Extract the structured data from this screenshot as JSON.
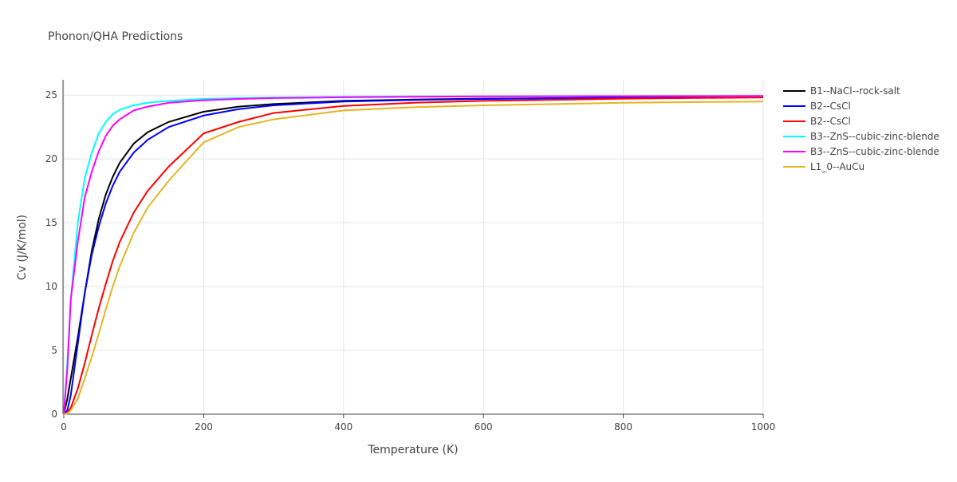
{
  "chart_data": {
    "type": "line",
    "title": "Phonon/QHA Predictions",
    "x_label": "Temperature (K)",
    "y_label": "Cv (J/K/mol)",
    "x": [
      0,
      5,
      10,
      20,
      30,
      40,
      50,
      60,
      70,
      80,
      100,
      120,
      150,
      200,
      250,
      300,
      400,
      500,
      600,
      800,
      1000
    ],
    "series": [
      {
        "name": "B1--NaCl--rock-salt",
        "color": "#000000",
        "values": [
          0,
          1.2,
          2.8,
          6,
          9.5,
          12.8,
          15.3,
          17.2,
          18.6,
          19.7,
          21.2,
          22.1,
          22.9,
          23.7,
          24.1,
          24.3,
          24.55,
          24.65,
          24.72,
          24.8,
          24.85
        ]
      },
      {
        "name": "B2--CsCl",
        "color": "#0000ff",
        "values": [
          0,
          0.3,
          1.5,
          5.5,
          9.5,
          12.5,
          14.7,
          16.5,
          17.9,
          19,
          20.5,
          21.5,
          22.5,
          23.4,
          23.9,
          24.2,
          24.5,
          24.62,
          24.7,
          24.8,
          24.85
        ]
      },
      {
        "name": "B2--CsCl",
        "color": "#ff0000",
        "values": [
          0,
          0.1,
          0.5,
          2,
          4,
          6.2,
          8.3,
          10.2,
          12,
          13.5,
          15.8,
          17.5,
          19.4,
          22,
          22.9,
          23.6,
          24.15,
          24.4,
          24.55,
          24.72,
          24.82
        ]
      },
      {
        "name": "B3--ZnS--cubic-zinc-blende",
        "color": "#00ffff",
        "values": [
          0,
          4,
          9,
          15,
          18.5,
          20.5,
          22,
          22.9,
          23.5,
          23.85,
          24.2,
          24.4,
          24.55,
          24.7,
          24.77,
          24.82,
          24.87,
          24.9,
          24.9,
          24.92,
          24.93
        ]
      },
      {
        "name": "B3--ZnS--cubic-zinc-blende",
        "color": "#ff00ff",
        "values": [
          0,
          3.5,
          9,
          13.5,
          17,
          19,
          20.6,
          21.8,
          22.6,
          23.1,
          23.8,
          24.1,
          24.4,
          24.6,
          24.7,
          24.77,
          24.83,
          24.87,
          24.9,
          24.92,
          24.93
        ]
      },
      {
        "name": "L1_0--AuCu",
        "color": "#e6b422",
        "values": [
          0,
          0.05,
          0.3,
          1.2,
          2.8,
          4.5,
          6.3,
          8.2,
          10,
          11.6,
          14.2,
          16.2,
          18.3,
          21.3,
          22.5,
          23.1,
          23.8,
          24.05,
          24.2,
          24.4,
          24.5
        ]
      }
    ],
    "xlim": [
      0,
      1000
    ],
    "xticks": [
      0,
      200,
      400,
      600,
      800,
      1000
    ],
    "ylim": [
      0,
      26.2
    ],
    "yticks": [
      0,
      5,
      10,
      15,
      20,
      25
    ],
    "grid": true
  }
}
